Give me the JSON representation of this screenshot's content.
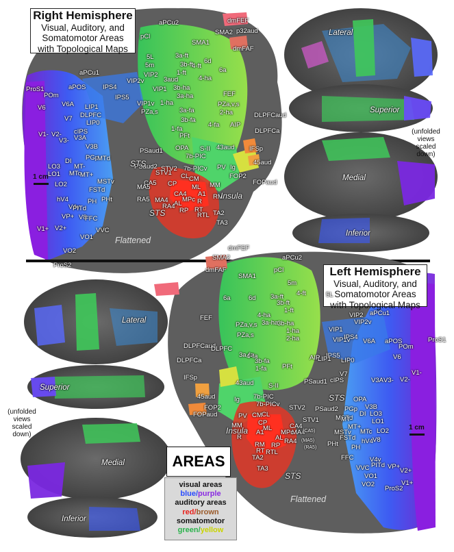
{
  "right_title": {
    "line1": "Right Hemisphere",
    "line2": "Visual, Auditory, and",
    "line3": "Somatomotor Areas",
    "line4": "with Topological Maps"
  },
  "left_title": {
    "line1": "Left Hemisphere",
    "line2": "Visual, Auditory, and",
    "line3": "Somatomotor Areas",
    "line4": "with Topological Maps"
  },
  "views": {
    "lateral": "Lateral",
    "superior": "Superior",
    "medial": "Medial",
    "inferior": "Inferior",
    "flattened": "Flattened"
  },
  "unfolded_note": {
    "l1": "(unfolded",
    "l2": "views",
    "l3": "scaled",
    "l4": "down)"
  },
  "scale_bar": "1 cm",
  "legend": {
    "title": "AREAS",
    "visual": "visual areas",
    "visual_colors": "blue/purple",
    "auditory": "auditory areas",
    "auditory_colors": "red/brown",
    "somato": "somatomotor",
    "somato_colors": "green/yellow",
    "blue": "#2a4cff",
    "purple": "#8a2be2",
    "red": "#e8201a",
    "brown": "#9a5a2a",
    "green": "#2bb24c",
    "yellow": "#c9d400"
  },
  "right_labels": [
    "aPCu2",
    "dmFEF",
    "p32aud",
    "pCl",
    "SMA2",
    "SMA1",
    "dmFAF",
    "5L",
    "3a-ft",
    "6d",
    "5m",
    "4-ft",
    "3b-ft",
    "VIP2",
    "1-ft",
    "6a",
    "aPCu1",
    "VIP2v",
    "3aud",
    "4-ha",
    "ProS1",
    "aPOS",
    "IPS4",
    "VIP1",
    "3b-ha",
    "POm",
    "IPS5",
    "3a-ha",
    "FEF",
    "V6A",
    "LIP1",
    "1-ha",
    "PZa,v,s",
    "V6",
    "VIP1v",
    "2-ha",
    "PZa,s",
    "AIP",
    "DLPFC",
    "V7",
    "LIP0",
    "3a-fa",
    "4-fa",
    "DLPFCaud",
    "cIPS",
    "3b-fa",
    "V1-",
    "V2-",
    "V3A",
    "1-fa",
    "DLPFCa",
    "V3-",
    "PFt",
    "V3B",
    "OPA",
    "PSaud1",
    "S-II",
    "43aud",
    "IFSp",
    "DI",
    "PGp",
    "7b-PIC",
    "LO3",
    "MT-",
    "MTd",
    "PSaud2",
    "STV2",
    "7b-PICv",
    "PV",
    "FOP2",
    "45aud",
    "LO1",
    "MTc",
    "MT+",
    "STV1",
    "Ig",
    "LO2",
    "MSTv",
    "CL",
    "CM",
    "FSTd",
    "CA5",
    "CP",
    "ML",
    "MM",
    "hV4",
    "MA5",
    "CA4",
    "A1",
    "FOPaud",
    "MA4",
    "MPc",
    "V4v",
    "PITd",
    "RA5",
    "AL",
    "R",
    "RM",
    "PH",
    "PHt",
    "RA4",
    "RP",
    "V8",
    "RT",
    "VP+",
    "TA2",
    "V2+",
    "FFC",
    "RTL",
    "V1+",
    "TA3",
    "VO1",
    "VVC",
    "VO2",
    "ProS2",
    "STS",
    "STS",
    "Insula"
  ],
  "left_labels": [
    "dmFEF",
    "SMA2",
    "aPCu2",
    "dmFAF",
    "pCl",
    "SMA1",
    "5m",
    "6a",
    "5L",
    "3a-ft",
    "6d",
    "4-ft",
    "3b-ft",
    "1-ft",
    "VIP2",
    "4-ha",
    "3a-ha",
    "3b-ha",
    "VIP1",
    "1-ha",
    "VIP2v",
    "aPCu1",
    "FEF",
    "PZa,v,s",
    "2-ha",
    "DLPFCaud",
    "PZa,s",
    "VIP1v",
    "IPS5",
    "IPS4",
    "aPOS",
    "ProS1",
    "DLPFC",
    "POm",
    "LIP1",
    "V6A",
    "V6",
    "3a-fa",
    "AIP",
    "DLPFCa",
    "4-fa",
    "3b-fa",
    "1-fa",
    "LIP0",
    "IFSp",
    "PFt",
    "V7",
    "cIPS",
    "V3A",
    "V3-",
    "V2-",
    "V1-",
    "43aud",
    "S-II",
    "PSaud1",
    "7b-PIC",
    "45aud",
    "7b-PICv",
    "Ig",
    "STV2",
    "PSaud2",
    "OPA",
    "V3B",
    "FOP2",
    "FOPaud",
    "PV",
    "CM",
    "CL",
    "PGp",
    "DI",
    "LO3",
    "STV1",
    "MSTd",
    "LO1",
    "CP",
    "MT+",
    "MT-",
    "ML",
    "MSTv",
    "CA4",
    "MA4",
    "MM",
    "A1",
    "MPc",
    "MTc",
    "LO2",
    "AL",
    "RA4",
    "FSTd",
    "R",
    "RP",
    "PHt",
    "RM",
    "RT",
    "RTL",
    "PH",
    "hV4",
    "V8",
    "V4v",
    "TA2",
    "PITd",
    "FFC",
    "TA3",
    "VVC",
    "VP+",
    "V2+",
    "VO1",
    "V1+",
    "VO2",
    "ProS2",
    "STS",
    "STS",
    "Insula",
    "(CA5)",
    "(MA5)",
    "(RA5)"
  ]
}
